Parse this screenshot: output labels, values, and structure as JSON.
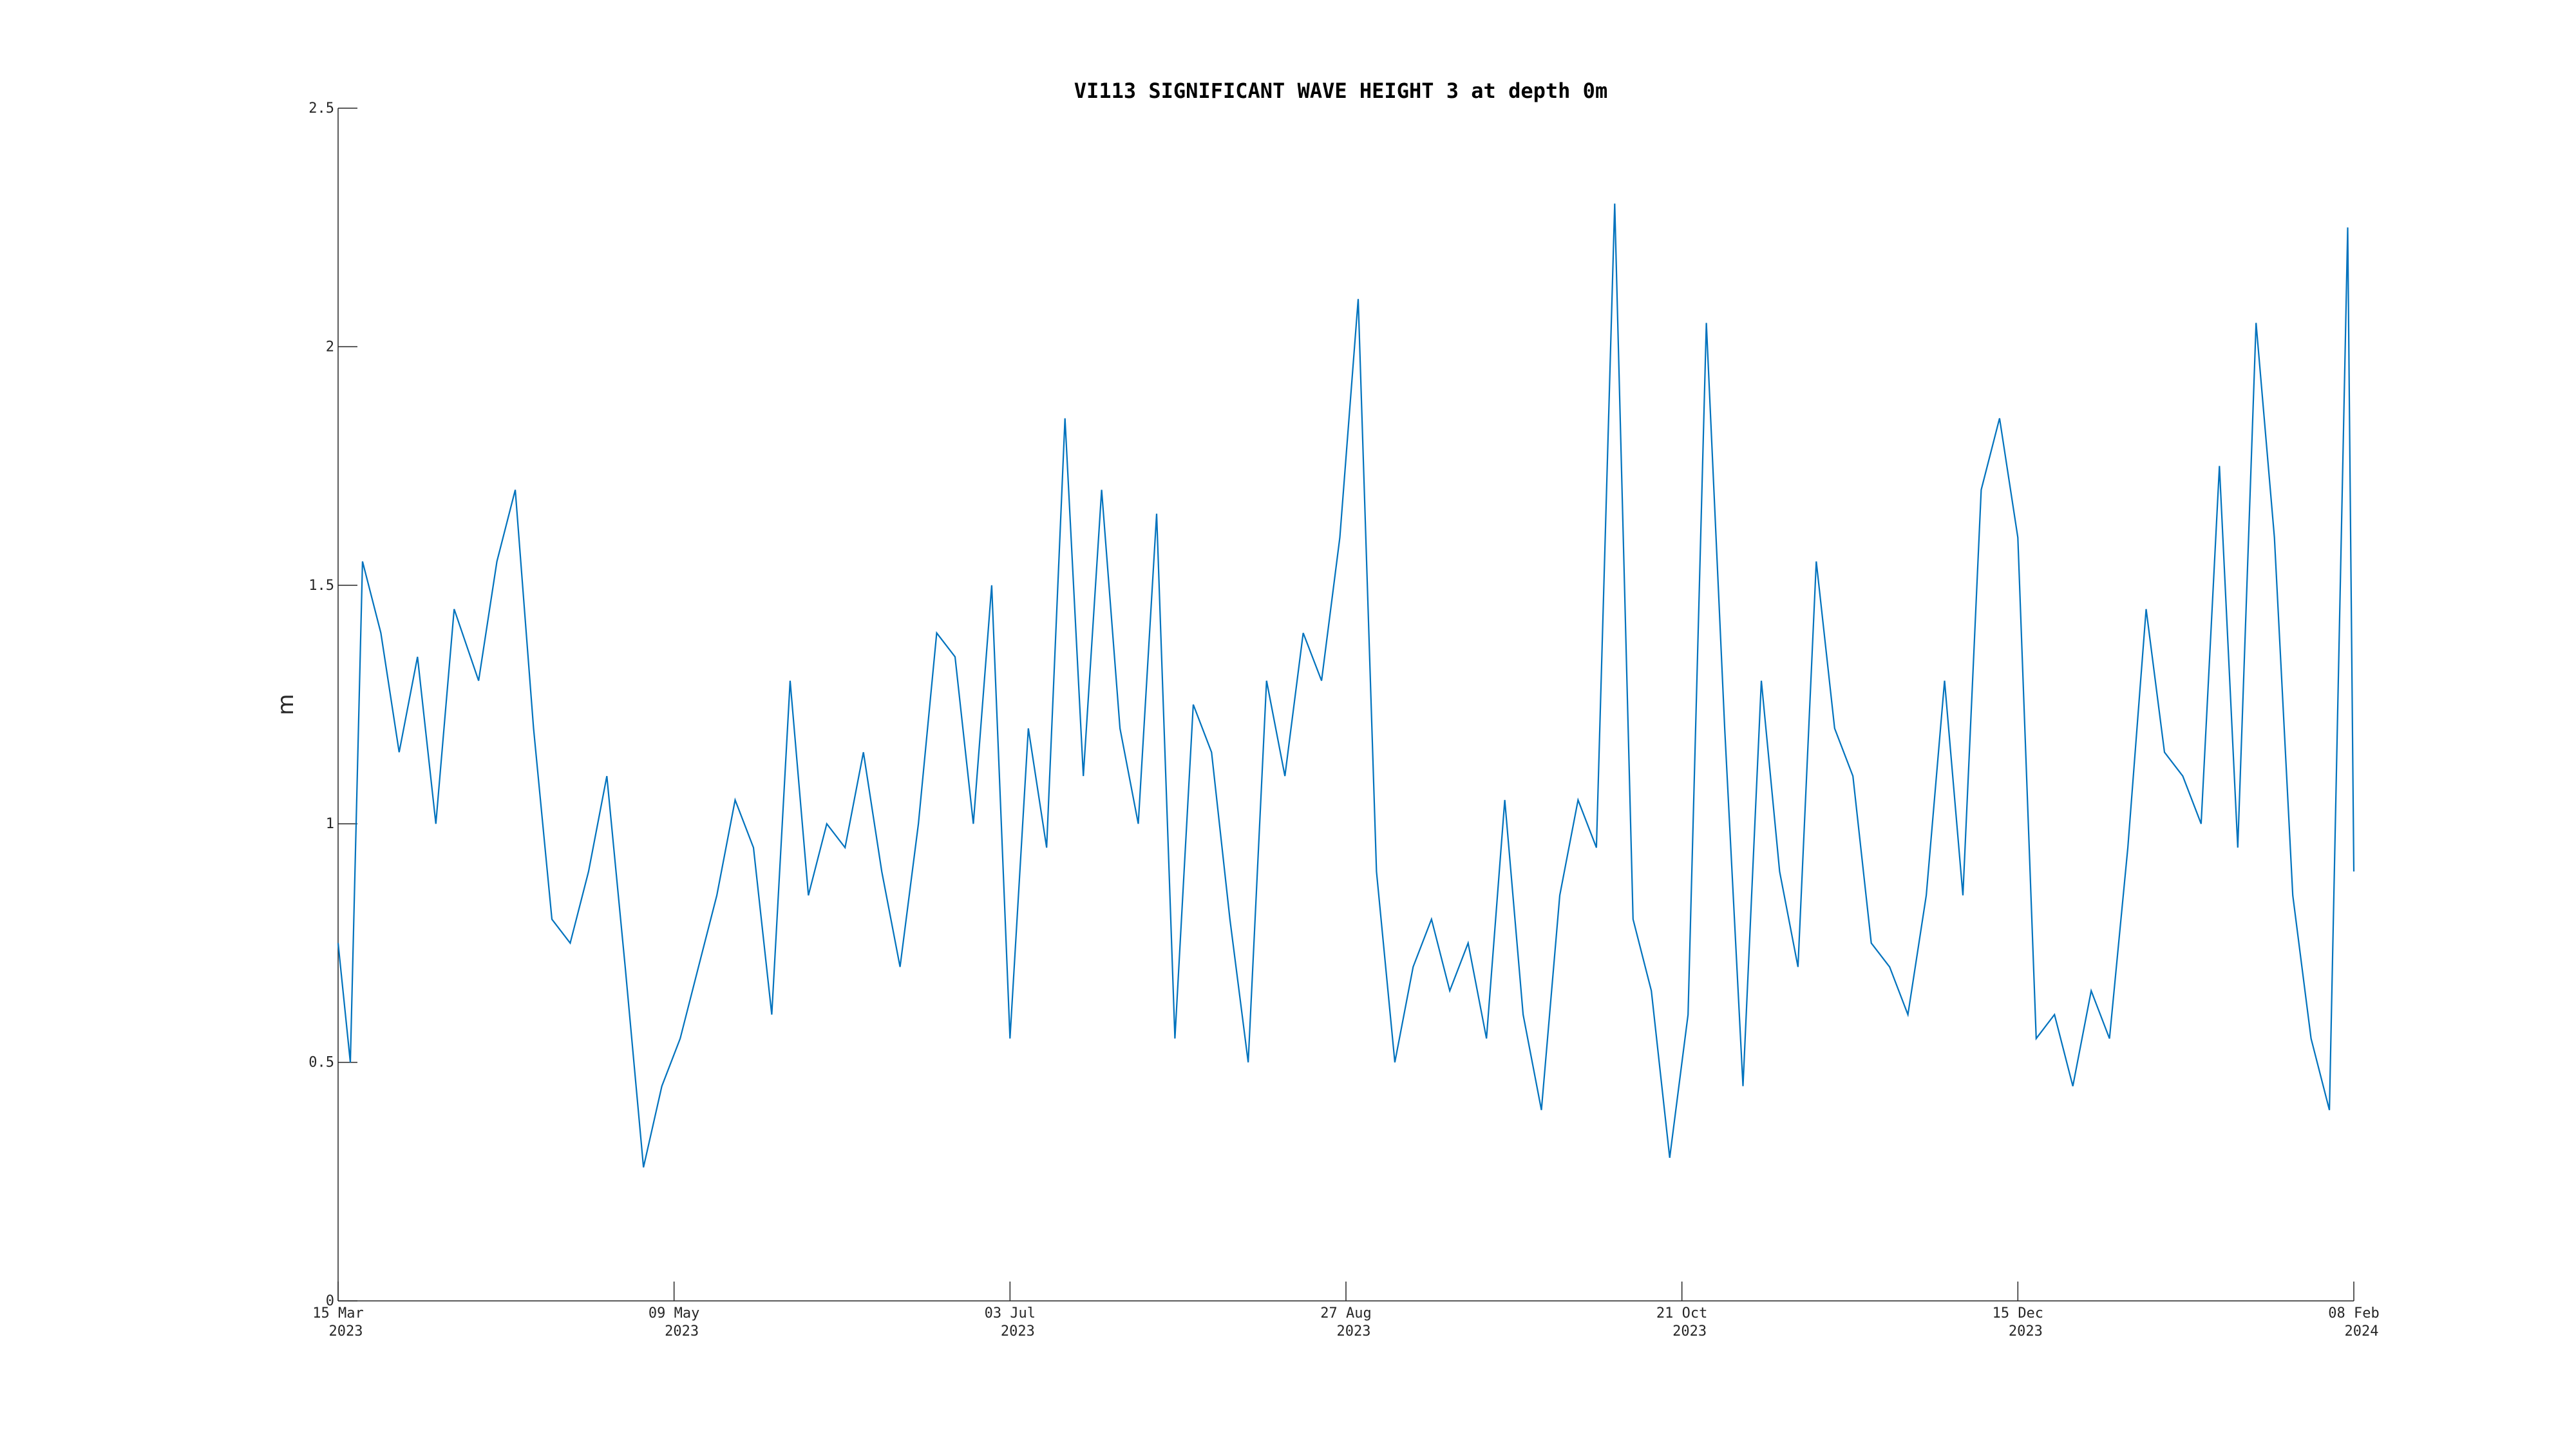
{
  "chart_data": {
    "type": "line",
    "title": "VI113 SIGNIFICANT WAVE HEIGHT 3 at depth 0m",
    "xlabel": "",
    "ylabel": "m",
    "xlim": [
      "2023-03-15",
      "2024-02-08"
    ],
    "ylim": [
      0,
      2.5
    ],
    "grid": false,
    "line_color": "#0072BD",
    "y_ticks": [
      {
        "value": 0,
        "label": "0"
      },
      {
        "value": 0.5,
        "label": "0.5"
      },
      {
        "value": 1,
        "label": "1"
      },
      {
        "value": 1.5,
        "label": "1.5"
      },
      {
        "value": 2,
        "label": "2"
      },
      {
        "value": 2.5,
        "label": "2.5"
      }
    ],
    "x_ticks": [
      {
        "date": "2023-03-15",
        "label": "15 Mar",
        "year": "2023"
      },
      {
        "date": "2023-05-09",
        "label": "09 May",
        "year": "2023"
      },
      {
        "date": "2023-07-03",
        "label": "03 Jul",
        "year": "2023"
      },
      {
        "date": "2023-08-27",
        "label": "27 Aug",
        "year": "2023"
      },
      {
        "date": "2023-10-21",
        "label": "21 Oct",
        "year": "2023"
      },
      {
        "date": "2023-12-15",
        "label": "15 Dec",
        "year": "2023"
      },
      {
        "date": "2024-02-08",
        "label": "08 Feb",
        "year": "2024"
      }
    ],
    "series": [
      {
        "x": [
          "2023-03-15",
          "2023-03-17",
          "2023-03-19",
          "2023-03-22",
          "2023-03-25",
          "2023-03-28",
          "2023-03-31",
          "2023-04-03",
          "2023-04-07",
          "2023-04-10",
          "2023-04-13",
          "2023-04-16",
          "2023-04-19",
          "2023-04-22",
          "2023-04-25",
          "2023-04-28",
          "2023-05-01",
          "2023-05-04",
          "2023-05-07",
          "2023-05-10",
          "2023-05-13",
          "2023-05-16",
          "2023-05-19",
          "2023-05-22",
          "2023-05-25",
          "2023-05-28",
          "2023-05-31",
          "2023-06-03",
          "2023-06-06",
          "2023-06-09",
          "2023-06-12",
          "2023-06-15",
          "2023-06-18",
          "2023-06-21",
          "2023-06-24",
          "2023-06-27",
          "2023-06-30",
          "2023-07-03",
          "2023-07-06",
          "2023-07-09",
          "2023-07-12",
          "2023-07-15",
          "2023-07-18",
          "2023-07-21",
          "2023-07-24",
          "2023-07-27",
          "2023-07-30",
          "2023-08-02",
          "2023-08-05",
          "2023-08-08",
          "2023-08-11",
          "2023-08-14",
          "2023-08-17",
          "2023-08-20",
          "2023-08-23",
          "2023-08-26",
          "2023-08-29",
          "2023-09-01",
          "2023-09-04",
          "2023-09-07",
          "2023-09-10",
          "2023-09-13",
          "2023-09-16",
          "2023-09-19",
          "2023-09-22",
          "2023-09-25",
          "2023-09-28",
          "2023-10-01",
          "2023-10-04",
          "2023-10-07",
          "2023-10-10",
          "2023-10-13",
          "2023-10-16",
          "2023-10-19",
          "2023-10-22",
          "2023-10-25",
          "2023-10-28",
          "2023-10-31",
          "2023-11-03",
          "2023-11-06",
          "2023-11-09",
          "2023-11-12",
          "2023-11-15",
          "2023-11-18",
          "2023-11-21",
          "2023-11-24",
          "2023-11-27",
          "2023-11-30",
          "2023-12-03",
          "2023-12-06",
          "2023-12-09",
          "2023-12-12",
          "2023-12-15",
          "2023-12-18",
          "2023-12-21",
          "2023-12-24",
          "2023-12-27",
          "2023-12-30",
          "2024-01-02",
          "2024-01-05",
          "2024-01-08",
          "2024-01-11",
          "2024-01-14",
          "2024-01-17",
          "2024-01-20",
          "2024-01-23",
          "2024-01-26",
          "2024-01-29",
          "2024-02-01",
          "2024-02-04",
          "2024-02-07",
          "2024-02-08"
        ],
        "y": [
          0.75,
          0.5,
          1.55,
          1.4,
          1.15,
          1.35,
          1.0,
          1.45,
          1.3,
          1.55,
          1.7,
          1.2,
          0.8,
          0.75,
          0.9,
          1.1,
          0.7,
          0.28,
          0.45,
          0.55,
          0.7,
          0.85,
          1.05,
          0.95,
          0.6,
          1.3,
          0.85,
          1.0,
          0.95,
          1.15,
          0.9,
          0.7,
          1.0,
          1.4,
          1.35,
          1.0,
          1.5,
          0.55,
          1.2,
          0.95,
          1.85,
          1.1,
          1.7,
          1.2,
          1.0,
          1.65,
          0.55,
          1.25,
          1.15,
          0.8,
          0.5,
          1.3,
          1.1,
          1.4,
          1.3,
          1.6,
          2.1,
          0.9,
          0.5,
          0.7,
          0.8,
          0.65,
          0.75,
          0.55,
          1.05,
          0.6,
          0.4,
          0.85,
          1.05,
          0.95,
          2.3,
          0.8,
          0.65,
          0.3,
          0.6,
          2.05,
          1.2,
          0.45,
          1.3,
          0.9,
          0.7,
          1.55,
          1.2,
          1.1,
          0.75,
          0.7,
          0.6,
          0.85,
          1.3,
          0.85,
          1.7,
          1.85,
          1.6,
          0.55,
          0.6,
          0.45,
          0.65,
          0.55,
          0.95,
          1.45,
          1.15,
          1.1,
          1.0,
          1.75,
          0.95,
          2.05,
          1.6,
          0.85,
          0.55,
          0.4,
          2.25,
          0.9
        ]
      }
    ]
  }
}
